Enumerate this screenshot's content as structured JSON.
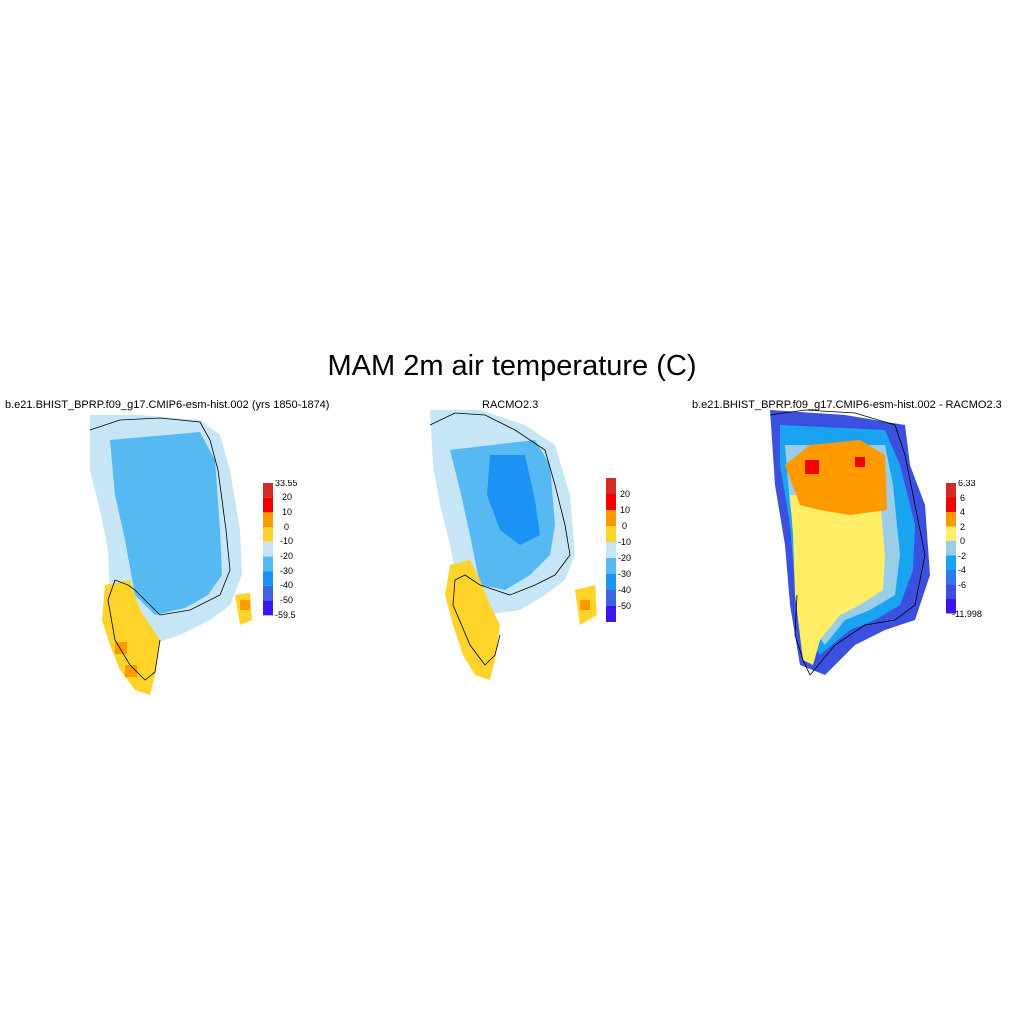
{
  "figure": {
    "title": "MAM 2m air temperature (C)"
  },
  "panels": [
    {
      "title": "b.e21.BHIST_BPRP.f09_g17.CMIP6-esm-hist.002 (yrs 1850-1874)",
      "colorbar": {
        "colors": [
          "#d62a2a",
          "#f20000",
          "#ff9900",
          "#ffd42a",
          "#c6e6f6",
          "#57b9f2",
          "#1a93f5",
          "#3c63e0",
          "#3c14f0"
        ],
        "labels": [
          "33.55",
          "20",
          "10",
          "0",
          "-10",
          "-20",
          "-30",
          "-40",
          "-50",
          "-59.5"
        ]
      }
    },
    {
      "title": "RACMO2.3",
      "colorbar": {
        "colors": [
          "#d62a2a",
          "#f20000",
          "#ff9900",
          "#ffd42a",
          "#c6e6f6",
          "#57b9f2",
          "#1a93f5",
          "#3c63e0",
          "#3c14f0"
        ],
        "labels": [
          "20",
          "10",
          "0",
          "-10",
          "-20",
          "-30",
          "-40",
          "-50"
        ]
      }
    },
    {
      "title": "b.e21.BHIST_BPRP.f09_g17.CMIP6-esm-hist.002 - RACMO2.3",
      "colorbar": {
        "colors": [
          "#d62a2a",
          "#f20000",
          "#ff9900",
          "#ffee66",
          "#9acde8",
          "#1aa3f0",
          "#2e7ae8",
          "#3c50e0",
          "#3c14f0"
        ],
        "labels": [
          "6.33",
          "6",
          "4",
          "2",
          "0",
          "-2",
          "-4",
          "-6",
          "-11.998"
        ]
      }
    }
  ]
}
